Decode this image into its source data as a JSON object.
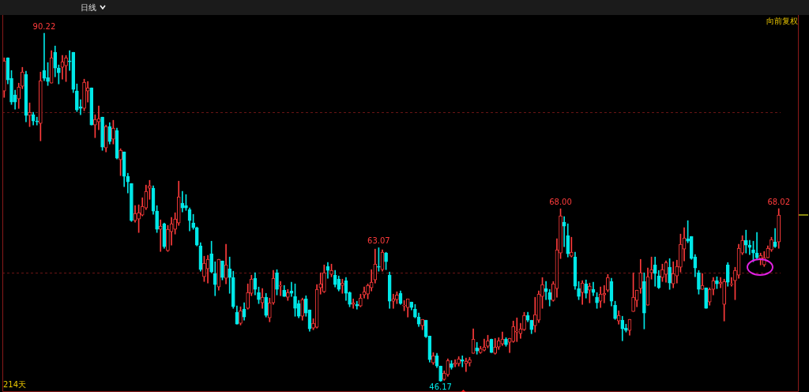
{
  "chart_data": {
    "type": "candlestick",
    "title": "日线",
    "categories": [
      null,
      null,
      null,
      null,
      null,
      null,
      null,
      null,
      null,
      null,
      null,
      null,
      null,
      null,
      null,
      null,
      null,
      null,
      null,
      null,
      null,
      null,
      null,
      null,
      null,
      null,
      null,
      null,
      null,
      null,
      null,
      null,
      null,
      null,
      null,
      null,
      null,
      null,
      null,
      null,
      null,
      null,
      null,
      null,
      null,
      null,
      null,
      null,
      null,
      null,
      null,
      null,
      null,
      null,
      null,
      null,
      null,
      null,
      null,
      null,
      null,
      null,
      null,
      null,
      null,
      null,
      null,
      null,
      null,
      null,
      null,
      null,
      null,
      null,
      null,
      null,
      null,
      null,
      null,
      null,
      null,
      null,
      null,
      null,
      null,
      null,
      null,
      null,
      null,
      null,
      null,
      null,
      null,
      null,
      null,
      null,
      null,
      null,
      null,
      null,
      null,
      null,
      null,
      null,
      null,
      null,
      null,
      null,
      null,
      null,
      null,
      null,
      null,
      null,
      null,
      null,
      null,
      null,
      null,
      null,
      null,
      null,
      null,
      null,
      null,
      null,
      null,
      null,
      null,
      null,
      null,
      null,
      null,
      null,
      null,
      null,
      null,
      null,
      null,
      null,
      null,
      null,
      null,
      null,
      null,
      null,
      null,
      null,
      null,
      null,
      null,
      null,
      null,
      null,
      null,
      null,
      null,
      null,
      null,
      null,
      null,
      null,
      null,
      null,
      null,
      null,
      null,
      null,
      null,
      null,
      null,
      null,
      null,
      null,
      null,
      null,
      null,
      null,
      null,
      null,
      null,
      null,
      null,
      null,
      null,
      null,
      null,
      null,
      null,
      null,
      null,
      null,
      null,
      null,
      null,
      null,
      null,
      null,
      null,
      null,
      null,
      null,
      null,
      null,
      null,
      null,
      null,
      null,
      null,
      null,
      null,
      null,
      null,
      null
    ],
    "ohlc": [
      [
        82.9,
        87.1,
        82.1,
        86.7
      ],
      [
        87.1,
        87.1,
        83.8,
        84.3
      ],
      [
        84.5,
        85.5,
        81.2,
        81.5
      ],
      [
        82.4,
        83,
        80.6,
        81.5
      ],
      [
        81.9,
        83.9,
        80.7,
        83.4
      ],
      [
        83.5,
        85.9,
        83.2,
        85.3
      ],
      [
        85,
        85.4,
        79,
        79.8
      ],
      [
        79.8,
        81.4,
        78.4,
        80.2
      ],
      [
        79.9,
        80.2,
        78.6,
        79.1
      ],
      [
        79.1,
        79.6,
        78.6,
        79
      ],
      [
        78.8,
        85.3,
        76.6,
        84.2
      ],
      [
        85.5,
        90.22,
        84.2,
        84.5
      ],
      [
        84.6,
        86.5,
        83.6,
        84.1
      ],
      [
        83.9,
        88,
        83.9,
        87.1
      ],
      [
        87.8,
        88.6,
        84.7,
        85.8
      ],
      [
        85.8,
        86.2,
        83.8,
        85.2
      ],
      [
        85.9,
        87.4,
        84.4,
        86.6
      ],
      [
        86.1,
        87.4,
        84.1,
        87.1
      ],
      [
        86.7,
        88,
        85.5,
        86.6
      ],
      [
        87.8,
        87.8,
        82.7,
        83.1
      ],
      [
        82.9,
        83.8,
        80.3,
        80.5
      ],
      [
        80.9,
        81.8,
        79.9,
        80.7
      ],
      [
        80.7,
        84.4,
        80.4,
        84
      ],
      [
        82.9,
        84.1,
        81.5,
        83.3
      ],
      [
        83.3,
        83.3,
        78.6,
        78.6
      ],
      [
        78.6,
        79.9,
        77,
        79.3
      ],
      [
        79,
        81,
        78,
        79.4
      ],
      [
        79.6,
        79.6,
        75.4,
        75.8
      ],
      [
        75.7,
        78.6,
        75.2,
        78.4
      ],
      [
        78.4,
        78.9,
        76.2,
        76.5
      ],
      [
        76.8,
        79.2,
        76.2,
        78.2
      ],
      [
        77.9,
        78.2,
        74.3,
        74.4
      ],
      [
        74.2,
        75.6,
        72.2,
        75.4
      ],
      [
        75.2,
        75.2,
        70.8,
        72.1
      ],
      [
        72.1,
        72.5,
        70,
        71.4
      ],
      [
        71.2,
        71.2,
        66.4,
        66.5
      ],
      [
        66.5,
        68.4,
        66.3,
        67.4
      ],
      [
        66.7,
        68.5,
        65,
        67.5
      ],
      [
        67.2,
        69.4,
        67.1,
        68.3
      ],
      [
        68.1,
        71,
        67.9,
        70.2
      ],
      [
        70.6,
        71.6,
        69.2,
        70.9
      ],
      [
        70.6,
        70.9,
        67.3,
        67.7
      ],
      [
        67.7,
        68.4,
        65,
        65.4
      ],
      [
        65.4,
        66.6,
        62.6,
        65.8
      ],
      [
        66.1,
        66.2,
        63,
        63.2
      ],
      [
        62.7,
        65.9,
        62.6,
        65.4
      ],
      [
        65.1,
        66.9,
        63.4,
        66.1
      ],
      [
        65.4,
        67.5,
        64.8,
        66.7
      ],
      [
        66.2,
        71.5,
        65.9,
        69.5
      ],
      [
        68.7,
        70.2,
        67.6,
        68.1
      ],
      [
        68.4,
        69.8,
        67.8,
        68.1
      ],
      [
        67.9,
        68.1,
        65.2,
        66.5
      ],
      [
        66.2,
        67.3,
        65.4,
        65.6
      ],
      [
        65.6,
        65.7,
        63.3,
        63.4
      ],
      [
        63.3,
        63.7,
        60.1,
        60.3
      ],
      [
        59.4,
        62,
        58.8,
        61.1
      ],
      [
        60.4,
        62.1,
        58.6,
        61.6
      ],
      [
        62.3,
        63.9,
        59.9,
        60
      ],
      [
        59.8,
        61.3,
        57,
        58.4
      ],
      [
        58.1,
        61.6,
        57.7,
        61.6
      ],
      [
        61.4,
        61.4,
        59,
        59.3
      ],
      [
        59.2,
        63.5,
        58.5,
        60.9
      ],
      [
        60.4,
        61.9,
        57.3,
        59.3
      ],
      [
        59.3,
        60.1,
        55.4,
        55.6
      ],
      [
        54.9,
        55.7,
        53.4,
        53.4
      ],
      [
        53.5,
        55.6,
        53.3,
        55.1
      ],
      [
        55.3,
        56.1,
        53.9,
        54.3
      ],
      [
        55.4,
        58.5,
        55.3,
        57.4
      ],
      [
        57.3,
        59.6,
        57,
        59.1
      ],
      [
        59.2,
        59.9,
        57.1,
        57.8
      ],
      [
        57.4,
        58.1,
        56,
        56.5
      ],
      [
        56.1,
        57.9,
        55.4,
        56.8
      ],
      [
        56.8,
        57.3,
        54.3,
        54.5
      ],
      [
        54.2,
        56.7,
        53.7,
        56.1
      ],
      [
        56.1,
        60.2,
        55.9,
        59.2
      ],
      [
        59.9,
        60.3,
        57.1,
        57.8
      ],
      [
        58.2,
        58.8,
        57,
        58.3
      ],
      [
        57.7,
        58.3,
        56.9,
        56.9
      ],
      [
        56.8,
        57.8,
        56.4,
        57.4
      ],
      [
        57.6,
        58.7,
        56.9,
        57.3
      ],
      [
        56.9,
        58.5,
        54.4,
        55.4
      ],
      [
        56,
        56.4,
        54.2,
        54.4
      ],
      [
        54.4,
        56.7,
        53.9,
        56.5
      ],
      [
        56.6,
        57,
        54.4,
        54.8
      ],
      [
        55.2,
        55.2,
        52.5,
        52.8
      ],
      [
        52.9,
        54.1,
        52.7,
        53.5
      ],
      [
        53,
        58.4,
        52.9,
        57.8
      ],
      [
        58,
        59.9,
        57.2,
        58.5
      ],
      [
        57.5,
        60.9,
        57.4,
        59.9
      ],
      [
        60.7,
        61.2,
        59.2,
        60.2
      ],
      [
        59.7,
        61,
        59.4,
        60.2
      ],
      [
        59.6,
        60.2,
        58.1,
        58.4
      ],
      [
        59.1,
        59.5,
        57.6,
        57.8
      ],
      [
        58.3,
        59.1,
        57.3,
        58.6
      ],
      [
        58.9,
        59.3,
        56.4,
        57.3
      ],
      [
        57.4,
        57.5,
        55.6,
        55.9
      ],
      [
        55.9,
        56.6,
        55.4,
        56.1
      ],
      [
        55.9,
        56.3,
        55.3,
        55.7
      ],
      [
        55.7,
        57.2,
        55.6,
        56.7
      ],
      [
        57.1,
        58.1,
        56.7,
        57.5
      ],
      [
        57.2,
        58.5,
        56.6,
        58.3
      ],
      [
        58,
        60.3,
        57.6,
        58.7
      ],
      [
        59,
        62.9,
        58.6,
        61
      ],
      [
        60.7,
        63.07,
        60.1,
        60.6
      ],
      [
        60.3,
        62.8,
        60.1,
        62.5
      ],
      [
        62.4,
        62.5,
        60.3,
        61.3
      ],
      [
        59.6,
        60,
        55.4,
        56.3
      ],
      [
        56.3,
        57.2,
        55.4,
        56.6
      ],
      [
        56.5,
        57.5,
        56,
        57.1
      ],
      [
        57.3,
        57.6,
        55.9,
        56
      ],
      [
        55.7,
        56.4,
        55.1,
        55.8
      ],
      [
        55.5,
        56.6,
        54.3,
        56.6
      ],
      [
        56.2,
        56.2,
        55.2,
        55.5
      ],
      [
        55.3,
        55.9,
        54.2,
        54.3
      ],
      [
        54.3,
        54.8,
        53.1,
        53.4
      ],
      [
        53.2,
        54,
        52.7,
        54
      ],
      [
        53.9,
        53.9,
        51.7,
        51.8
      ],
      [
        51.9,
        51.9,
        48.6,
        48.9
      ],
      [
        48.5,
        49.8,
        48.3,
        49.4
      ],
      [
        49.4,
        49.7,
        47.9,
        48.1
      ],
      [
        48.1,
        48.1,
        46.17,
        46.2
      ],
      [
        46.4,
        47.5,
        46.3,
        47.2
      ],
      [
        47,
        49,
        46.8,
        48.8
      ],
      [
        48.4,
        48.8,
        47.7,
        47.9
      ],
      [
        48.3,
        48.9,
        48,
        48.5
      ],
      [
        48.4,
        49.3,
        48.1,
        49
      ],
      [
        48.9,
        49.4,
        48,
        48.7
      ],
      [
        48.4,
        49.1,
        47.4,
        48.7
      ],
      [
        48.5,
        49.2,
        48.1,
        48.9
      ],
      [
        49.7,
        52.8,
        49.7,
        51.5
      ],
      [
        50.4,
        51.1,
        49.6,
        50
      ],
      [
        49.8,
        50.6,
        49.7,
        50.3
      ],
      [
        50.1,
        51.5,
        50,
        50.5
      ],
      [
        50.6,
        52,
        50.4,
        51.3
      ],
      [
        51.5,
        51.5,
        49.8,
        49.8
      ],
      [
        49.7,
        51.6,
        49.6,
        50.5
      ],
      [
        50.5,
        51.7,
        50.2,
        51.3
      ],
      [
        50.9,
        52.4,
        50.7,
        51.5
      ],
      [
        51.5,
        51.7,
        50.6,
        50.8
      ],
      [
        51.1,
        51.6,
        49.8,
        51.6
      ],
      [
        51.2,
        53.8,
        51.1,
        53.1
      ],
      [
        52.4,
        54.2,
        51.2,
        52.5
      ],
      [
        52.2,
        53.5,
        51.6,
        52.8
      ],
      [
        52.7,
        54.9,
        52.6,
        54.5
      ],
      [
        54.5,
        54.9,
        53.7,
        53.9
      ],
      [
        53.9,
        53.9,
        52.2,
        52.7
      ],
      [
        53.2,
        56.8,
        52.4,
        54.6
      ],
      [
        53.9,
        57.6,
        53.6,
        57.2
      ],
      [
        56.9,
        59.3,
        55.4,
        58.4
      ],
      [
        57.9,
        58.8,
        56.5,
        57.5
      ],
      [
        57.4,
        57.8,
        55.7,
        56.5
      ],
      [
        56.4,
        58.8,
        56.3,
        58.5
      ],
      [
        57.9,
        64.2,
        56.8,
        62.8
      ],
      [
        62.4,
        68,
        61.7,
        67.1
      ],
      [
        66.3,
        67,
        63.2,
        65.8
      ],
      [
        64.6,
        66.1,
        61.9,
        62.3
      ],
      [
        62,
        64.4,
        61.9,
        62.5
      ],
      [
        61.9,
        62.5,
        57.8,
        58.2
      ],
      [
        57.9,
        58.8,
        56.5,
        56.9
      ],
      [
        57.4,
        58.9,
        55.9,
        58.6
      ],
      [
        58.5,
        59,
        56.7,
        57.3
      ],
      [
        57.7,
        58.6,
        56.1,
        58.2
      ],
      [
        57.8,
        58.7,
        57,
        57.4
      ],
      [
        56.8,
        57.4,
        55.4,
        56.1
      ],
      [
        56.3,
        58.1,
        55.5,
        57.2
      ],
      [
        57.1,
        58.3,
        56.1,
        57.3
      ],
      [
        57.7,
        59.7,
        57.5,
        59.3
      ],
      [
        58.8,
        59.2,
        55.7,
        56.3
      ],
      [
        55.8,
        56.3,
        54,
        54.1
      ],
      [
        53.8,
        55.1,
        53.4,
        54.5
      ],
      [
        53.9,
        54.4,
        51.3,
        52.8
      ],
      [
        52.9,
        53.4,
        52.4,
        52.6
      ],
      [
        52.6,
        54,
        52,
        54
      ],
      [
        55,
        59.9,
        55,
        56.8
      ],
      [
        56.4,
        57.7,
        55.6,
        57.7
      ],
      [
        57.9,
        61.6,
        57.3,
        59.9
      ],
      [
        58.8,
        59.9,
        52.8,
        54.8
      ],
      [
        55.8,
        60.5,
        55.8,
        59.4
      ],
      [
        59.9,
        61.9,
        59.1,
        60.3
      ],
      [
        60.9,
        61.9,
        58.2,
        59.8
      ],
      [
        59.5,
        60.2,
        57.9,
        58
      ],
      [
        59.3,
        61,
        58.8,
        60.3
      ],
      [
        59.7,
        61.4,
        58.7,
        61.2
      ],
      [
        60.6,
        61.7,
        57.8,
        58.6
      ],
      [
        58.5,
        61.3,
        58,
        59.8
      ],
      [
        59.5,
        61.5,
        58.6,
        60.7
      ],
      [
        60.6,
        64.8,
        60,
        63.5
      ],
      [
        62.9,
        65.6,
        61.4,
        64.3
      ],
      [
        64.2,
        66.5,
        63.7,
        63.9
      ],
      [
        64.5,
        64.5,
        61.6,
        61.7
      ],
      [
        61.9,
        62.2,
        59.4,
        60.5
      ],
      [
        59.9,
        60.2,
        57.2,
        57.8
      ],
      [
        57.8,
        59.8,
        57.8,
        58.3
      ],
      [
        58,
        58,
        55.4,
        55.4
      ],
      [
        56.2,
        58,
        55.8,
        57.8
      ],
      [
        57.8,
        59.3,
        57.1,
        58.9
      ],
      [
        58.9,
        59.4,
        57.9,
        58.5
      ],
      [
        58.5,
        59.3,
        58,
        58.7
      ],
      [
        55.9,
        59.1,
        53.8,
        58.8
      ],
      [
        60.9,
        61.2,
        58.2,
        58.7
      ],
      [
        58.4,
        59.3,
        58.2,
        58.5
      ],
      [
        58.9,
        60.6,
        56.5,
        60.2
      ],
      [
        59.6,
        63.5,
        59.2,
        63
      ],
      [
        62.4,
        64.6,
        62.2,
        64
      ],
      [
        64,
        65.3,
        62.4,
        63.4
      ],
      [
        63.4,
        64,
        62.2,
        63.1
      ],
      [
        62.8,
        63.9,
        61.3,
        62.4
      ],
      [
        62.4,
        65,
        61.6,
        61.8
      ],
      [
        61.7,
        62.4,
        60.9,
        62.1
      ],
      [
        60.9,
        62.6,
        60.7,
        61.8
      ],
      [
        61.8,
        63.3,
        61.8,
        63
      ],
      [
        62.8,
        64.4,
        62.6,
        64.1
      ],
      [
        63.8,
        65.5,
        63.1,
        63.2
      ],
      [
        63.8,
        68.02,
        63,
        67.2
      ]
    ],
    "ylim": [
      44.82,
      92.52
    ],
    "yticks": [
      {
        "value": 80.2,
        "label": null
      },
      {
        "value": 59.9,
        "label": null
      }
    ],
    "grid": "y",
    "tick_labels": false,
    "annotations": [
      "向前复权",
      "214天",
      {
        "text": "90.22",
        "y": 90.22
      },
      {
        "text": "63.07",
        "y": 63.07
      },
      {
        "text": "46.17",
        "y": 46.17
      },
      {
        "text": "68.00",
        "y": 68
      },
      {
        "text": "68.02",
        "y": 68.02
      }
    ]
  }
}
